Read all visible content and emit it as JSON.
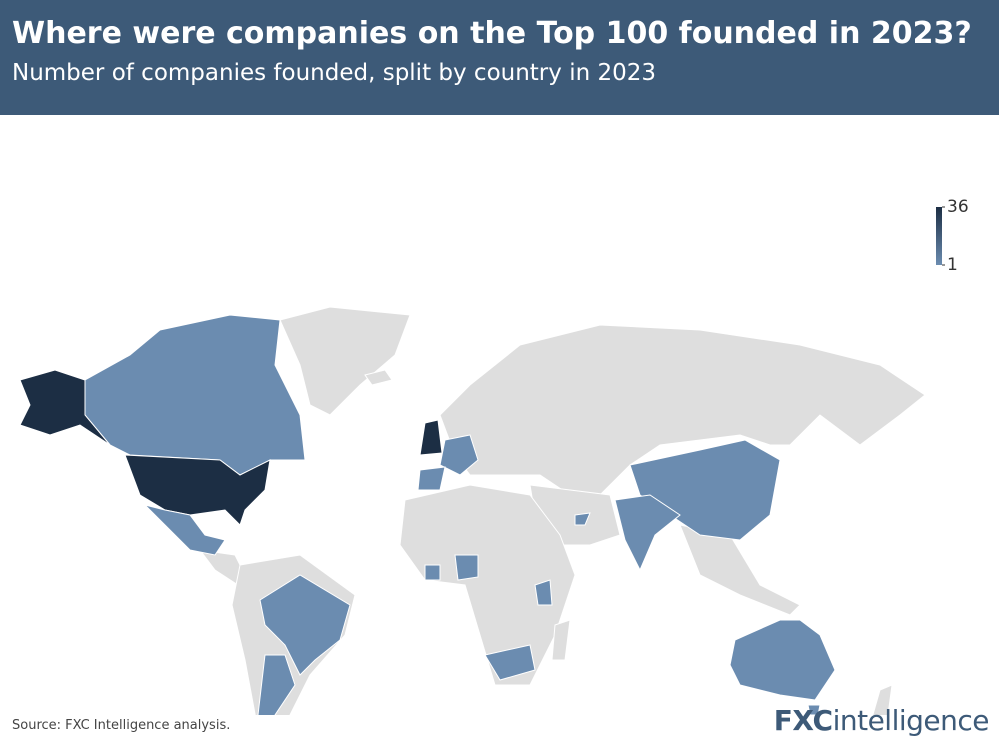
{
  "header": {
    "title": "Where were companies on the Top 100 founded in 2023?",
    "subtitle": "Number of companies founded, split by country in 2023"
  },
  "chart_data": {
    "type": "choropleth",
    "colorbar": {
      "range": [
        1,
        36
      ],
      "ticks": [
        1,
        36
      ],
      "colors": [
        "#6b8cb0",
        "#1c2e44"
      ]
    }
  },
  "footer": {
    "source": "Source: FXC Intelligence analysis.",
    "logo": [
      "FXC",
      "intelligence"
    ]
  }
}
